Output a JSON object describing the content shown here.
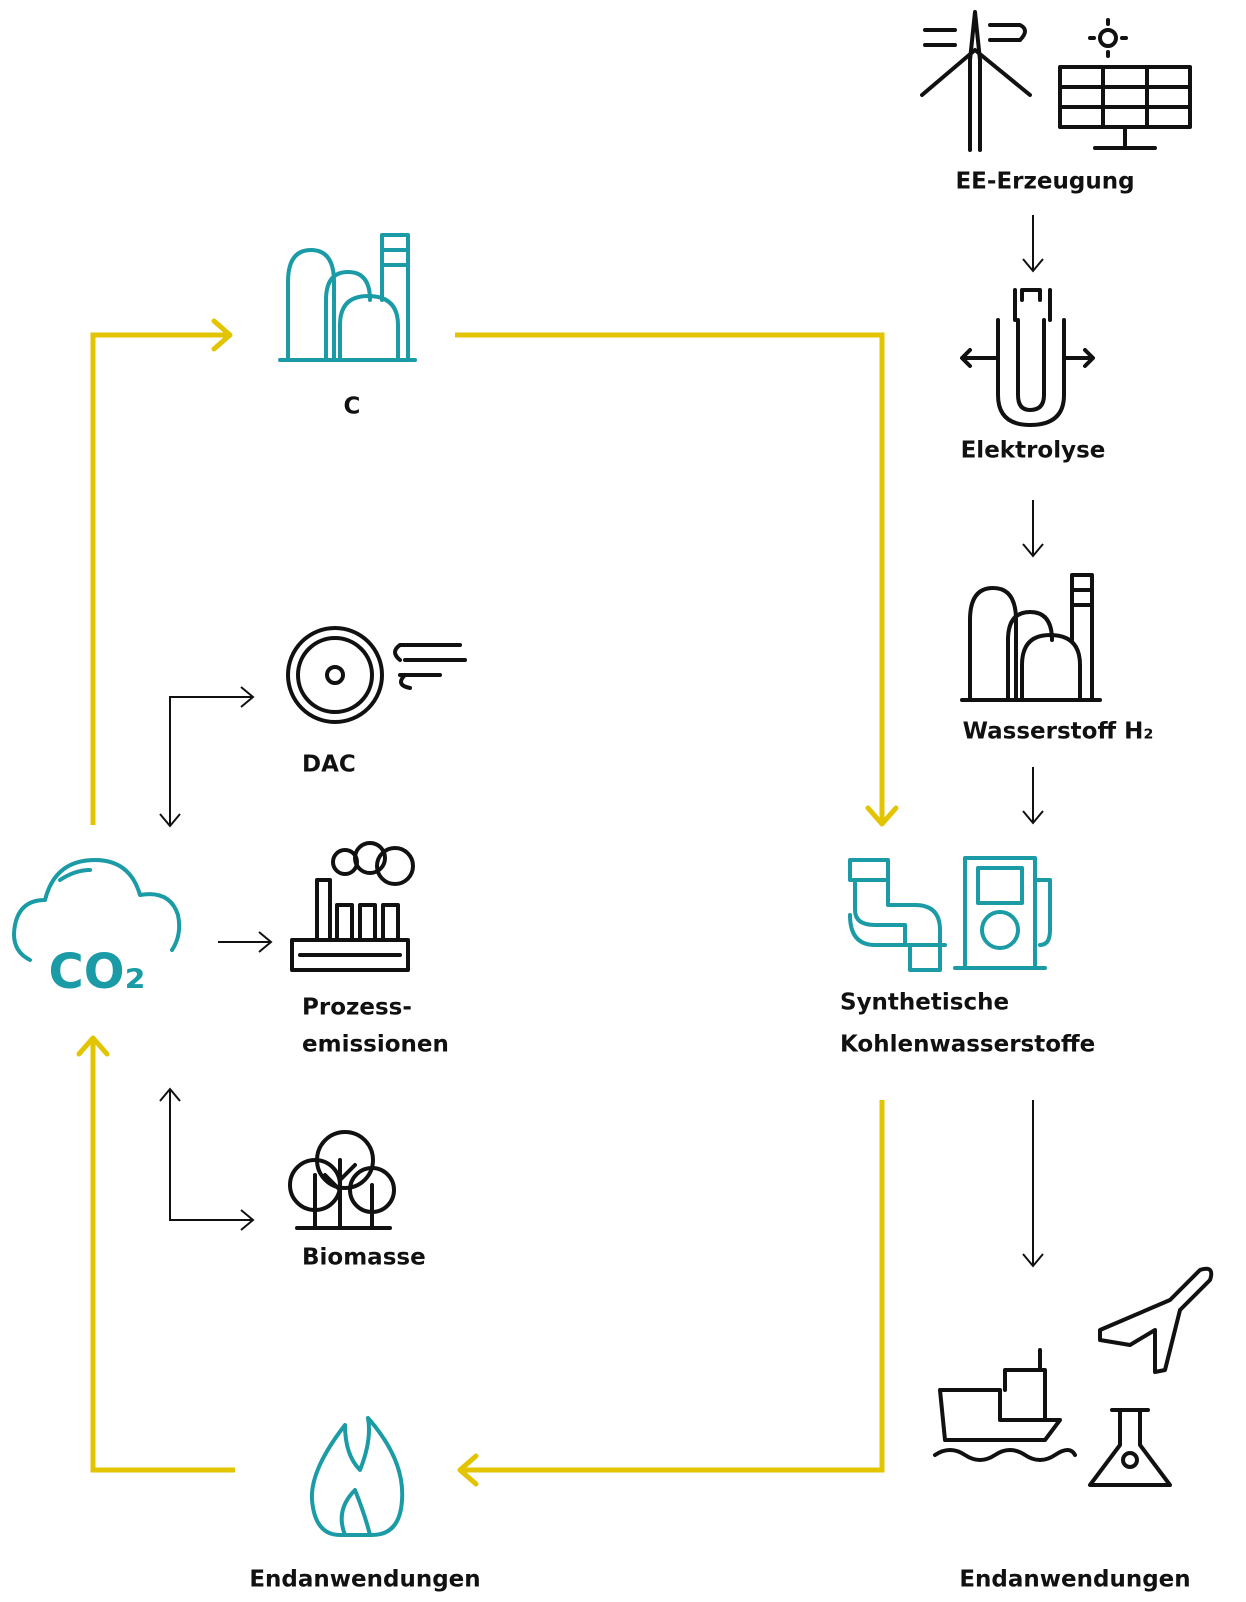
{
  "nodes": [
    {
      "id": "ee",
      "lines": [
        "EE-Erzeugung"
      ]
    },
    {
      "id": "elektrolyse",
      "lines": [
        "Elektrolyse"
      ]
    },
    {
      "id": "wasserstoff",
      "lines": [
        "Wasserstoff H₂"
      ]
    },
    {
      "id": "c",
      "lines": [
        "C"
      ]
    },
    {
      "id": "dac",
      "lines": [
        "DAC"
      ]
    },
    {
      "id": "prozess",
      "lines": [
        "Prozess-",
        "emissionen"
      ]
    },
    {
      "id": "biomasse",
      "lines": [
        "Biomasse"
      ]
    },
    {
      "id": "synth",
      "lines": [
        "Synthetische",
        "Kohlenwasserstoffe"
      ]
    },
    {
      "id": "end-left",
      "lines": [
        "Endanwendungen"
      ]
    },
    {
      "id": "end-right",
      "lines": [
        "Endanwendungen"
      ]
    },
    {
      "id": "co2",
      "lines": [
        "CO₂"
      ]
    }
  ]
}
